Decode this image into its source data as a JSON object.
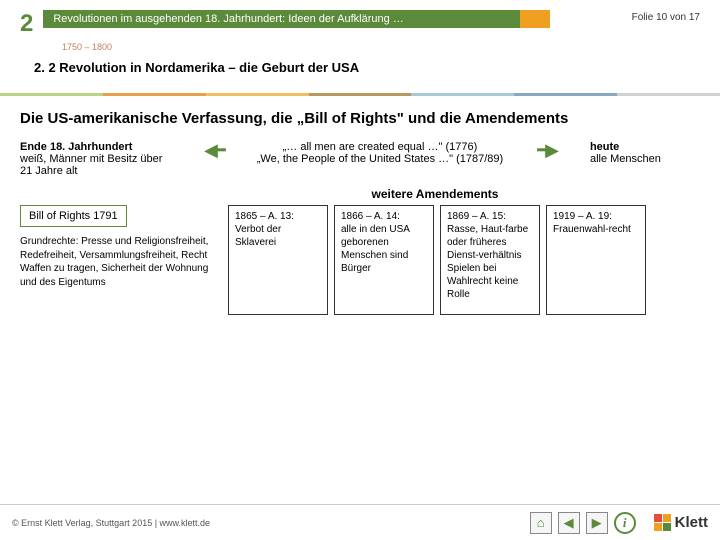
{
  "header": {
    "chapter_number": "2",
    "title": "Revolutionen im ausgehenden 18. Jahrhundert: Ideen der Aufklärung …",
    "slide_counter": "Folie 10 von 17",
    "period": "1750 – 1800",
    "section": "2. 2  Revolution in Nordamerika – die Geburt der USA"
  },
  "stripe_colors": [
    "#b8d488",
    "#e8a04a",
    "#f0c060",
    "#b89860",
    "#a8c8d8",
    "#88a8c0",
    "#d0d0d0"
  ],
  "main": {
    "title": "Die US-amerikanische Verfassung, die „Bill of Rights\" und die Amendements",
    "quote1": "„… all men are created equal …\" (1776)",
    "quote2": "„We, the People of the United States …\" (1787/89)",
    "left_heading": "Ende 18. Jahrhundert",
    "left_body": "weiß, Männer mit Besitz über 21 Jahre alt",
    "right_heading": "heute",
    "right_body": "alle Menschen",
    "further": "weitere Amendements",
    "bor_label": "Bill of Rights 1791",
    "rights_text": "Grundrechte: Presse und Religionsfreiheit, Redefreiheit, Versammlungsfreiheit,\nRecht Waffen zu tragen, Sicherheit der Wohnung und des Eigentums",
    "amendments": [
      {
        "head": "1865 – A. 13:",
        "body": "Verbot der Sklaverei"
      },
      {
        "head": "1866 – A. 14:",
        "body": "alle in\nden USA geborenen Menschen sind Bürger"
      },
      {
        "head": "1869 – A. 15:",
        "body": "Rasse, Haut-farbe oder\nfrüheres Dienst-verhältnis Spielen bei Wahlrecht keine Rolle"
      },
      {
        "head": "1919 – A. 19:",
        "body": "Frauenwahl-recht"
      }
    ]
  },
  "footer": {
    "copyright": "© Ernst Klett Verlag, Stuttgart 2015 | www.klett.de",
    "logo_text": "Klett"
  }
}
